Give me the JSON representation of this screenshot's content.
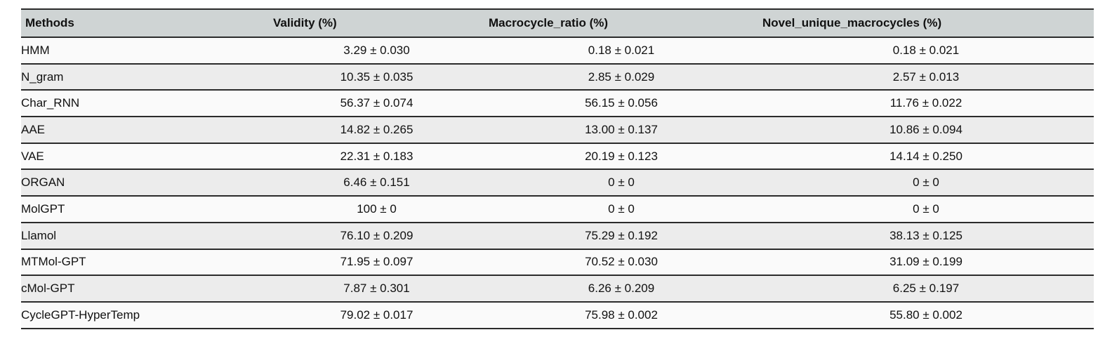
{
  "colors": {
    "header_background": "#cfd4d4",
    "row_light_background": "#fafafa",
    "row_alt_background": "#ececec",
    "rule_color": "#2b2b2b",
    "text_color": "#111111"
  },
  "table": {
    "columns": [
      "Methods",
      "Validity (%)",
      "Macrocycle_ratio (%)",
      "Novel_unique_macrocycles (%)"
    ],
    "rows": [
      [
        "HMM",
        "3.29 ± 0.030",
        "0.18 ± 0.021",
        "0.18 ± 0.021"
      ],
      [
        "N_gram",
        "10.35 ± 0.035",
        "2.85 ± 0.029",
        "2.57 ± 0.013"
      ],
      [
        "Char_RNN",
        "56.37 ± 0.074",
        "56.15 ± 0.056",
        "11.76 ± 0.022"
      ],
      [
        "AAE",
        "14.82 ± 0.265",
        "13.00 ± 0.137",
        "10.86 ± 0.094"
      ],
      [
        "VAE",
        "22.31 ± 0.183",
        "20.19 ± 0.123",
        "14.14 ± 0.250"
      ],
      [
        "ORGAN",
        "6.46 ± 0.151",
        "0 ± 0",
        "0 ± 0"
      ],
      [
        "MolGPT",
        "100 ± 0",
        "0 ± 0",
        "0 ± 0"
      ],
      [
        "Llamol",
        "76.10 ± 0.209",
        "75.29 ± 0.192",
        "38.13 ± 0.125"
      ],
      [
        "MTMol-GPT",
        "71.95 ± 0.097",
        "70.52 ± 0.030",
        "31.09 ± 0.199"
      ],
      [
        "cMol-GPT",
        "7.87 ± 0.301",
        "6.26 ± 0.209",
        "6.25 ± 0.197"
      ],
      [
        "CycleGPT-HyperTemp",
        "79.02 ± 0.017",
        "75.98 ± 0.002",
        "55.80 ± 0.002"
      ]
    ]
  }
}
